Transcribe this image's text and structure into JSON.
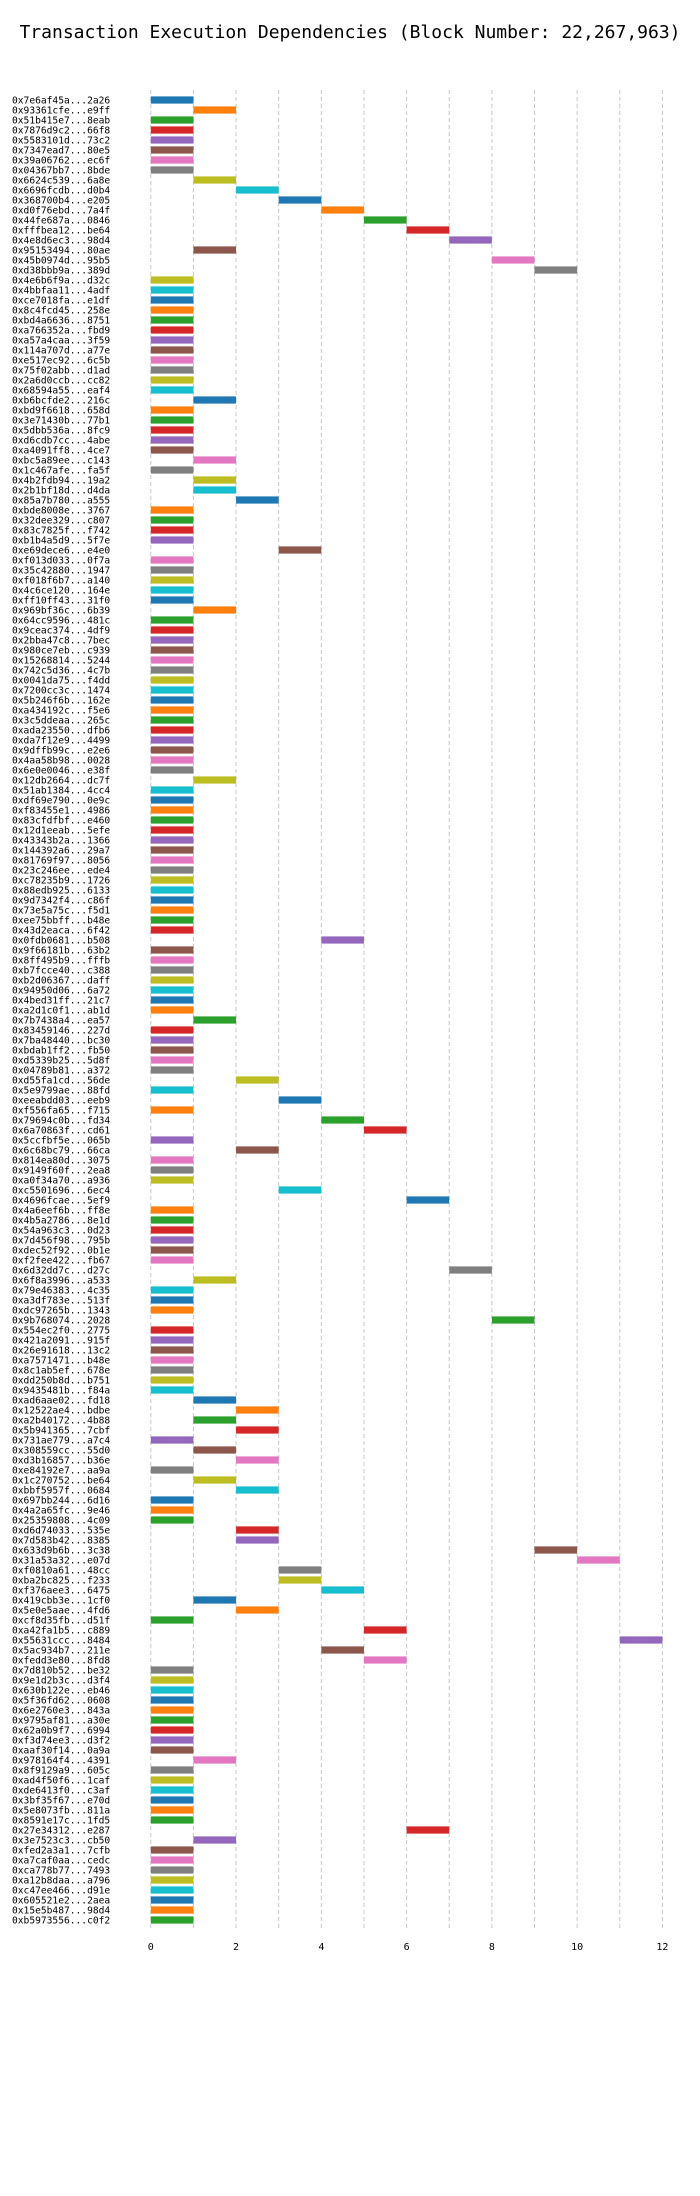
{
  "chart_data": {
    "type": "bar",
    "orientation": "horizontal",
    "title": "Transaction Execution Dependencies (Block Number: 22,267,963)",
    "xlabel": "",
    "ylabel": "",
    "xlim": [
      -0.3,
      12.6
    ],
    "x_ticks": [
      0,
      2,
      4,
      6,
      8,
      10,
      12
    ],
    "grid": "vertical-dashed",
    "colors": [
      "#1f77b4",
      "#ff7f0e",
      "#2ca02c",
      "#d62728",
      "#9467bd",
      "#8c564b",
      "#e377c2",
      "#7f7f7f",
      "#bcbd22",
      "#17becf"
    ],
    "rows": [
      {
        "label": "0x7e6af45a...2a26",
        "start": 0,
        "color": 0
      },
      {
        "label": "0x93361cfe...e9ff",
        "start": 1,
        "color": 1
      },
      {
        "label": "0x51b415e7...8eab",
        "start": 0,
        "color": 2
      },
      {
        "label": "0x7876d9c2...66f8",
        "start": 0,
        "color": 3
      },
      {
        "label": "0x5583101d...73c2",
        "start": 0,
        "color": 4
      },
      {
        "label": "0x7347ead7...80e5",
        "start": 0,
        "color": 5
      },
      {
        "label": "0x39a06762...ec6f",
        "start": 0,
        "color": 6
      },
      {
        "label": "0x04367bb7...8bde",
        "start": 0,
        "color": 7
      },
      {
        "label": "0x6624c539...6a8e",
        "start": 1,
        "color": 8
      },
      {
        "label": "0x6696fcdb...d0b4",
        "start": 2,
        "color": 9
      },
      {
        "label": "0x368700b4...e205",
        "start": 3,
        "color": 0
      },
      {
        "label": "0xd0f76ebd...7a4f",
        "start": 4,
        "color": 1
      },
      {
        "label": "0x44fe687a...0846",
        "start": 5,
        "color": 2
      },
      {
        "label": "0xfffbea12...be64",
        "start": 6,
        "color": 3
      },
      {
        "label": "0x4e8d6ec3...98d4",
        "start": 7,
        "color": 4
      },
      {
        "label": "0x95153494...80ae",
        "start": 1,
        "color": 5
      },
      {
        "label": "0x45b0974d...95b5",
        "start": 8,
        "color": 6
      },
      {
        "label": "0xd38bbb9a...389d",
        "start": 9,
        "color": 7
      },
      {
        "label": "0x4e6b6f9a...d32c",
        "start": 0,
        "color": 8
      },
      {
        "label": "0x4bbfaa11...4adf",
        "start": 0,
        "color": 9
      },
      {
        "label": "0xce7018fa...e1df",
        "start": 0,
        "color": 0
      },
      {
        "label": "0x8c4fcd45...258e",
        "start": 0,
        "color": 1
      },
      {
        "label": "0xbd4a6636...8751",
        "start": 0,
        "color": 2
      },
      {
        "label": "0xa766352a...fbd9",
        "start": 0,
        "color": 3
      },
      {
        "label": "0xa57a4caa...3f59",
        "start": 0,
        "color": 4
      },
      {
        "label": "0x114a707d...a77e",
        "start": 0,
        "color": 5
      },
      {
        "label": "0xe517ec92...6c5b",
        "start": 0,
        "color": 6
      },
      {
        "label": "0x75f02abb...d1ad",
        "start": 0,
        "color": 7
      },
      {
        "label": "0x2a6d0ccb...cc82",
        "start": 0,
        "color": 8
      },
      {
        "label": "0x68594a55...eaf4",
        "start": 0,
        "color": 9
      },
      {
        "label": "0xb6bcfde2...216c",
        "start": 1,
        "color": 0
      },
      {
        "label": "0xbd9f6618...658d",
        "start": 0,
        "color": 1
      },
      {
        "label": "0x3e71430b...77b1",
        "start": 0,
        "color": 2
      },
      {
        "label": "0x5dbb536a...8fc9",
        "start": 0,
        "color": 3
      },
      {
        "label": "0xd6cdb7cc...4abe",
        "start": 0,
        "color": 4
      },
      {
        "label": "0xa4091ff8...4ce7",
        "start": 0,
        "color": 5
      },
      {
        "label": "0xbc5a89ee...c143",
        "start": 1,
        "color": 6
      },
      {
        "label": "0x1c467afe...fa5f",
        "start": 0,
        "color": 7
      },
      {
        "label": "0x4b2fdb94...19a2",
        "start": 1,
        "color": 8
      },
      {
        "label": "0x2b1bf18d...d4da",
        "start": 1,
        "color": 9
      },
      {
        "label": "0x85a7b780...a555",
        "start": 2,
        "color": 0
      },
      {
        "label": "0xbde8008e...3767",
        "start": 0,
        "color": 1
      },
      {
        "label": "0x32dee329...c807",
        "start": 0,
        "color": 2
      },
      {
        "label": "0x83c7825f...f742",
        "start": 0,
        "color": 3
      },
      {
        "label": "0xb1b4a5d9...5f7e",
        "start": 0,
        "color": 4
      },
      {
        "label": "0xe69dece6...e4e0",
        "start": 3,
        "color": 5
      },
      {
        "label": "0xf013d033...0f7a",
        "start": 0,
        "color": 6
      },
      {
        "label": "0x35c42880...1947",
        "start": 0,
        "color": 7
      },
      {
        "label": "0xf018f6b7...a140",
        "start": 0,
        "color": 8
      },
      {
        "label": "0x4c6ce120...164e",
        "start": 0,
        "color": 9
      },
      {
        "label": "0xff10ff43...31f0",
        "start": 0,
        "color": 0
      },
      {
        "label": "0x969bf36c...6b39",
        "start": 1,
        "color": 1
      },
      {
        "label": "0x64cc9596...481c",
        "start": 0,
        "color": 2
      },
      {
        "label": "0x9ceac374...4df9",
        "start": 0,
        "color": 3
      },
      {
        "label": "0x2bba47c8...7bec",
        "start": 0,
        "color": 4
      },
      {
        "label": "0x980ce7eb...c939",
        "start": 0,
        "color": 5
      },
      {
        "label": "0x15268814...5244",
        "start": 0,
        "color": 6
      },
      {
        "label": "0x742c5d36...4c7b",
        "start": 0,
        "color": 7
      },
      {
        "label": "0x0041da75...f4dd",
        "start": 0,
        "color": 8
      },
      {
        "label": "0x7200cc3c...1474",
        "start": 0,
        "color": 9
      },
      {
        "label": "0x5b246f6b...162e",
        "start": 0,
        "color": 0
      },
      {
        "label": "0xa434192c...f5e6",
        "start": 0,
        "color": 1
      },
      {
        "label": "0x3c5ddeaa...265c",
        "start": 0,
        "color": 2
      },
      {
        "label": "0xada23550...dfb6",
        "start": 0,
        "color": 3
      },
      {
        "label": "0xda7f12e9...4499",
        "start": 0,
        "color": 4
      },
      {
        "label": "0x9dffb99c...e2e6",
        "start": 0,
        "color": 5
      },
      {
        "label": "0x4aa58b98...0028",
        "start": 0,
        "color": 6
      },
      {
        "label": "0x6e0e0046...e38f",
        "start": 0,
        "color": 7
      },
      {
        "label": "0x12db2664...dc7f",
        "start": 1,
        "color": 8
      },
      {
        "label": "0x51ab1384...4cc4",
        "start": 0,
        "color": 9
      },
      {
        "label": "0xdf69e790...0e9c",
        "start": 0,
        "color": 0
      },
      {
        "label": "0xf83455e1...4986",
        "start": 0,
        "color": 1
      },
      {
        "label": "0x83cfdfbf...e460",
        "start": 0,
        "color": 2
      },
      {
        "label": "0x12d1eeab...5efe",
        "start": 0,
        "color": 3
      },
      {
        "label": "0x43343b2a...1366",
        "start": 0,
        "color": 4
      },
      {
        "label": "0x144392a6...29a7",
        "start": 0,
        "color": 5
      },
      {
        "label": "0x81769f97...8056",
        "start": 0,
        "color": 6
      },
      {
        "label": "0x23c246ee...ede4",
        "start": 0,
        "color": 7
      },
      {
        "label": "0xc78235b9...1726",
        "start": 0,
        "color": 8
      },
      {
        "label": "0x88edb925...6133",
        "start": 0,
        "color": 9
      },
      {
        "label": "0x9d7342f4...c86f",
        "start": 0,
        "color": 0
      },
      {
        "label": "0x73e5a75c...f5d1",
        "start": 0,
        "color": 1
      },
      {
        "label": "0xee75bbff...b48e",
        "start": 0,
        "color": 2
      },
      {
        "label": "0x43d2eaca...6f42",
        "start": 0,
        "color": 3
      },
      {
        "label": "0x0fdb0681...b508",
        "start": 4,
        "color": 4
      },
      {
        "label": "0x9f66181b...63b2",
        "start": 0,
        "color": 5
      },
      {
        "label": "0x8ff495b9...fffb",
        "start": 0,
        "color": 6
      },
      {
        "label": "0xb7fcce40...c388",
        "start": 0,
        "color": 7
      },
      {
        "label": "0xb2d06367...daff",
        "start": 0,
        "color": 8
      },
      {
        "label": "0x94950d06...6a72",
        "start": 0,
        "color": 9
      },
      {
        "label": "0x4bed31ff...21c7",
        "start": 0,
        "color": 0
      },
      {
        "label": "0xa2d1c0f1...ab1d",
        "start": 0,
        "color": 1
      },
      {
        "label": "0x7b7438a4...ea57",
        "start": 1,
        "color": 2
      },
      {
        "label": "0x83459146...227d",
        "start": 0,
        "color": 3
      },
      {
        "label": "0x7ba48440...bc30",
        "start": 0,
        "color": 4
      },
      {
        "label": "0xbdab1ff2...fb50",
        "start": 0,
        "color": 5
      },
      {
        "label": "0xd5339b25...5d8f",
        "start": 0,
        "color": 6
      },
      {
        "label": "0x04789b81...a372",
        "start": 0,
        "color": 7
      },
      {
        "label": "0xd55fa1cd...56de",
        "start": 2,
        "color": 8
      },
      {
        "label": "0x5e9799ae...88fd",
        "start": 0,
        "color": 9
      },
      {
        "label": "0xeeabdd03...eeb9",
        "start": 3,
        "color": 0
      },
      {
        "label": "0xf556fa65...f715",
        "start": 0,
        "color": 1
      },
      {
        "label": "0x79694c0b...fd34",
        "start": 4,
        "color": 2
      },
      {
        "label": "0x6a70863f...cd61",
        "start": 5,
        "color": 3
      },
      {
        "label": "0x5ccfbf5e...065b",
        "start": 0,
        "color": 4
      },
      {
        "label": "0x6c68bc79...66ca",
        "start": 2,
        "color": 5
      },
      {
        "label": "0x814ea80d...3075",
        "start": 0,
        "color": 6
      },
      {
        "label": "0x9149f60f...2ea8",
        "start": 0,
        "color": 7
      },
      {
        "label": "0xa0f34a70...a936",
        "start": 0,
        "color": 8
      },
      {
        "label": "0xc5501696...6ec4",
        "start": 3,
        "color": 9
      },
      {
        "label": "0x4696fcae...5ef9",
        "start": 6,
        "color": 0
      },
      {
        "label": "0x4a6eef6b...ff8e",
        "start": 0,
        "color": 1
      },
      {
        "label": "0x4b5a2786...8e1d",
        "start": 0,
        "color": 2
      },
      {
        "label": "0x54a963c3...0d23",
        "start": 0,
        "color": 3
      },
      {
        "label": "0x7d456f98...795b",
        "start": 0,
        "color": 4
      },
      {
        "label": "0xdec52f92...0b1e",
        "start": 0,
        "color": 5
      },
      {
        "label": "0xf2fee422...fb67",
        "start": 0,
        "color": 6
      },
      {
        "label": "0x6d32dd7c...d27c",
        "start": 7,
        "color": 7
      },
      {
        "label": "0x6f8a3996...a533",
        "start": 1,
        "color": 8
      },
      {
        "label": "0x79e46383...4c35",
        "start": 0,
        "color": 9
      },
      {
        "label": "0xa3df783e...513f",
        "start": 0,
        "color": 0
      },
      {
        "label": "0xdc97265b...1343",
        "start": 0,
        "color": 1
      },
      {
        "label": "0x9b768074...2028",
        "start": 8,
        "color": 2
      },
      {
        "label": "0x554ec2f0...2775",
        "start": 0,
        "color": 3
      },
      {
        "label": "0x421a2091...915f",
        "start": 0,
        "color": 4
      },
      {
        "label": "0x26e91618...13c2",
        "start": 0,
        "color": 5
      },
      {
        "label": "0xa7571471...b48e",
        "start": 0,
        "color": 6
      },
      {
        "label": "0x8c1ab5ef...678e",
        "start": 0,
        "color": 7
      },
      {
        "label": "0xdd250b8d...b751",
        "start": 0,
        "color": 8
      },
      {
        "label": "0x9435481b...f84a",
        "start": 0,
        "color": 9
      },
      {
        "label": "0xad6aae02...fd18",
        "start": 1,
        "color": 0
      },
      {
        "label": "0x12522ae4...bdbe",
        "start": 2,
        "color": 1
      },
      {
        "label": "0xa2b40172...4b88",
        "start": 1,
        "color": 2
      },
      {
        "label": "0x5b941365...7cbf",
        "start": 2,
        "color": 3
      },
      {
        "label": "0x731ae779...a7c4",
        "start": 0,
        "color": 4
      },
      {
        "label": "0x308559cc...55d0",
        "start": 1,
        "color": 5
      },
      {
        "label": "0xd3b16857...b36e",
        "start": 2,
        "color": 6
      },
      {
        "label": "0xe84192e7...aa9a",
        "start": 0,
        "color": 7
      },
      {
        "label": "0x1c270752...be64",
        "start": 1,
        "color": 8
      },
      {
        "label": "0xbbf5957f...0684",
        "start": 2,
        "color": 9
      },
      {
        "label": "0x697bb244...6d16",
        "start": 0,
        "color": 0
      },
      {
        "label": "0x4a2a65fc...9e46",
        "start": 0,
        "color": 1
      },
      {
        "label": "0x25359808...4c09",
        "start": 0,
        "color": 2
      },
      {
        "label": "0xd6d74033...535e",
        "start": 2,
        "color": 3
      },
      {
        "label": "0x7d583b42...8385",
        "start": 2,
        "color": 4
      },
      {
        "label": "0x633d9b6b...3c38",
        "start": 9,
        "color": 5
      },
      {
        "label": "0x31a53a32...e07d",
        "start": 10,
        "color": 6
      },
      {
        "label": "0xf0810a61...48cc",
        "start": 3,
        "color": 7
      },
      {
        "label": "0xba2bc825...f233",
        "start": 3,
        "color": 8
      },
      {
        "label": "0xf376aee3...6475",
        "start": 4,
        "color": 9
      },
      {
        "label": "0x419cbb3e...1cf0",
        "start": 1,
        "color": 0
      },
      {
        "label": "0x5e0e5aae...4fd6",
        "start": 2,
        "color": 1
      },
      {
        "label": "0xcf8d35fb...d51f",
        "start": 0,
        "color": 2
      },
      {
        "label": "0xa42fa1b5...c889",
        "start": 5,
        "color": 3
      },
      {
        "label": "0x55631ccc...8484",
        "start": 11,
        "color": 4
      },
      {
        "label": "0x5ac934b7...211e",
        "start": 4,
        "color": 5
      },
      {
        "label": "0xfedd3e80...8fd8",
        "start": 5,
        "color": 6
      },
      {
        "label": "0x7d810b52...be32",
        "start": 0,
        "color": 7
      },
      {
        "label": "0x9e1d2b3c...d3f4",
        "start": 0,
        "color": 8
      },
      {
        "label": "0x630b122e...eb46",
        "start": 0,
        "color": 9
      },
      {
        "label": "0x5f36fd62...0608",
        "start": 0,
        "color": 0
      },
      {
        "label": "0x6e2760e3...843a",
        "start": 0,
        "color": 1
      },
      {
        "label": "0x9795af81...a30e",
        "start": 0,
        "color": 2
      },
      {
        "label": "0x62a0b9f7...6994",
        "start": 0,
        "color": 3
      },
      {
        "label": "0xf3d74ee3...d3f2",
        "start": 0,
        "color": 4
      },
      {
        "label": "0xaaf30f14...0a9a",
        "start": 0,
        "color": 5
      },
      {
        "label": "0x978164f4...4391",
        "start": 1,
        "color": 6
      },
      {
        "label": "0x8f9129a9...605c",
        "start": 0,
        "color": 7
      },
      {
        "label": "0xad4f50f6...1caf",
        "start": 0,
        "color": 8
      },
      {
        "label": "0xde6413f0...c3af",
        "start": 0,
        "color": 9
      },
      {
        "label": "0x3bf35f67...e70d",
        "start": 0,
        "color": 0
      },
      {
        "label": "0x5e8073fb...811a",
        "start": 0,
        "color": 1
      },
      {
        "label": "0x8591e17c...1fd5",
        "start": 0,
        "color": 2
      },
      {
        "label": "0x27e34312...e287",
        "start": 6,
        "color": 3
      },
      {
        "label": "0x3e7523c3...cb50",
        "start": 1,
        "color": 4
      },
      {
        "label": "0xfed2a3a1...7cfb",
        "start": 0,
        "color": 5
      },
      {
        "label": "0xa7caf0aa...cedc",
        "start": 0,
        "color": 6
      },
      {
        "label": "0xca778b77...7493",
        "start": 0,
        "color": 7
      },
      {
        "label": "0xa12b8daa...a796",
        "start": 0,
        "color": 8
      },
      {
        "label": "0xc47ee466...d91e",
        "start": 0,
        "color": 9
      },
      {
        "label": "0x605521e2...2aea",
        "start": 0,
        "color": 0
      },
      {
        "label": "0x15e5b487...98d4",
        "start": 0,
        "color": 1
      },
      {
        "label": "0xb5973556...c0f2",
        "start": 0,
        "color": 2
      }
    ]
  }
}
